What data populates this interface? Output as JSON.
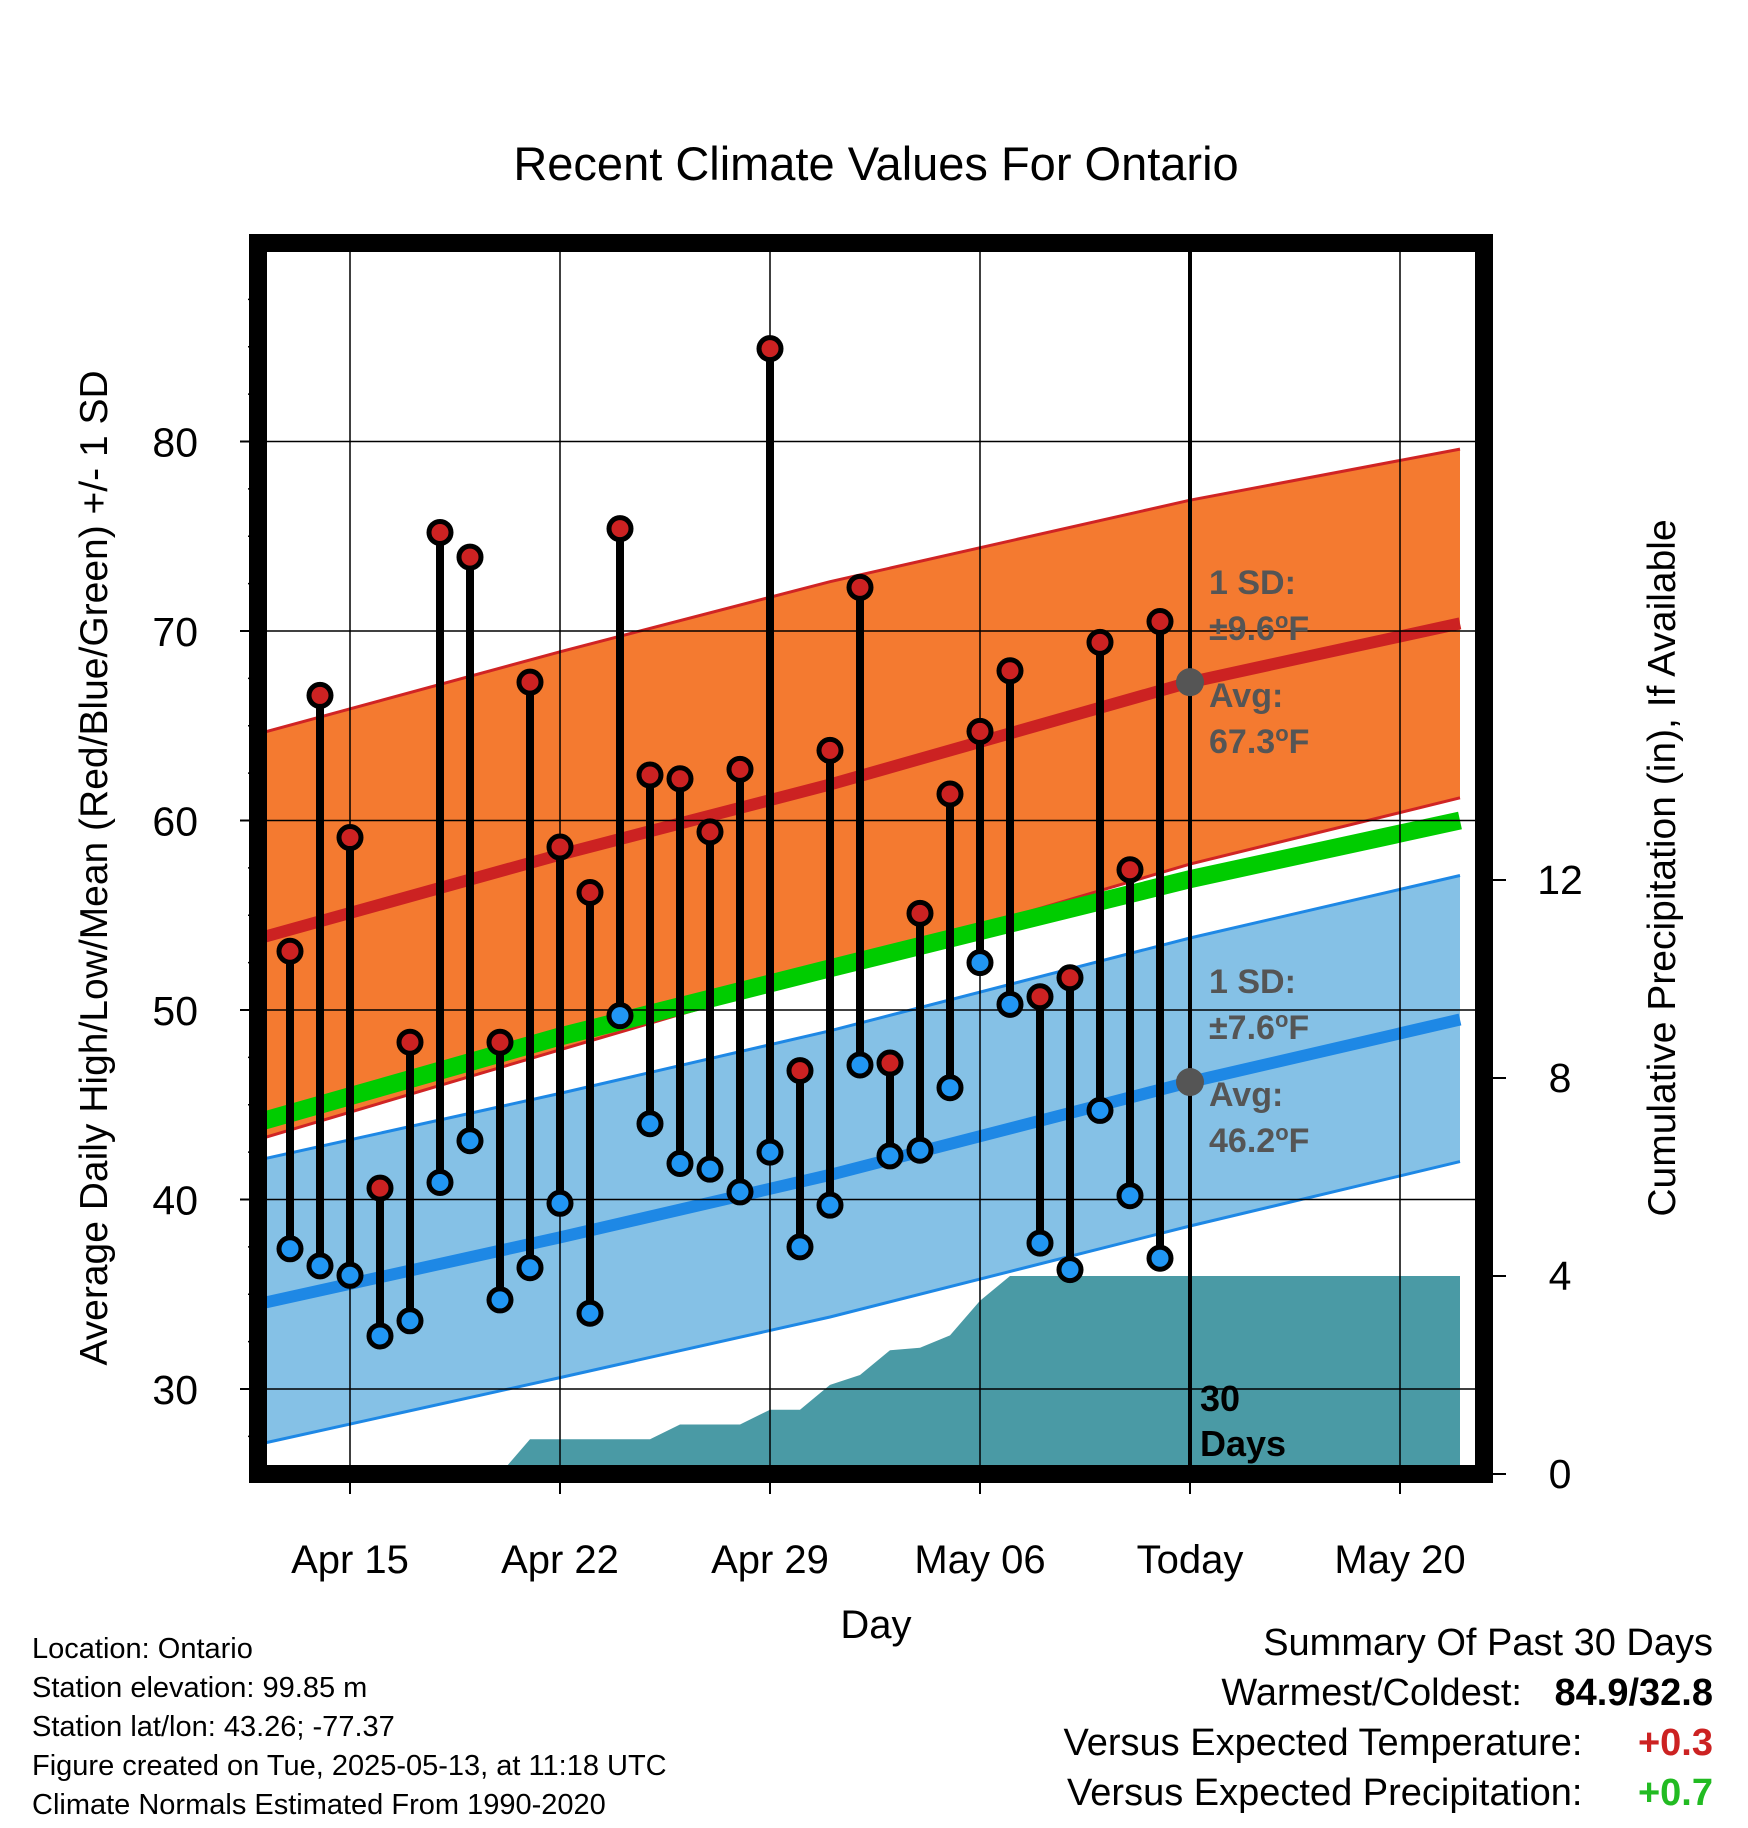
{
  "chart_data": {
    "type": "line",
    "title": "Recent Climate Values For Ontario",
    "xlabel": "Day",
    "ylabel": "Average Daily High/Low/Mean (Red/Blue/Green) +/- 1 SD",
    "y2label": "Cumulative Precipitation (in), If Available",
    "ylim": [
      25,
      90
    ],
    "y2lim": [
      0,
      22
    ],
    "yticks": [
      30,
      40,
      50,
      60,
      70,
      80
    ],
    "y2ticks": [
      0,
      4,
      8,
      12
    ],
    "xlim": [
      "2025-04-12",
      "2025-05-22"
    ],
    "xtick_dates": [
      "2025-04-15",
      "2025-04-22",
      "2025-04-29",
      "2025-05-06",
      "2025-05-13",
      "2025-05-20"
    ],
    "xtick_labels": [
      "Apr 15",
      "Apr 22",
      "Apr 29",
      "May 06",
      "Today",
      "May 20"
    ],
    "grid": true,
    "today": "2025-05-13",
    "days_label": "30\nDays",
    "colors": {
      "high_band": "#f47a30",
      "high_edge": "#d02424",
      "high_mean": "#cc2222",
      "low_band": "#85c1e6",
      "low_edge": "#1e88e5",
      "low_mean": "#1e88e5",
      "mean_normal": "#00cc00",
      "precip": "#4a9aa5",
      "high_marker": "#cc2222",
      "low_marker": "#2196f3",
      "annotation": "#555555",
      "plus_temp": "#cc2222",
      "plus_precip": "#22bb22"
    },
    "normal_high": {
      "dates": [
        "2025-04-12",
        "2025-04-22",
        "2025-05-01",
        "2025-05-13",
        "2025-05-22"
      ],
      "mean": [
        53.8,
        58.2,
        61.9,
        67.3,
        70.4
      ],
      "upper": [
        64.6,
        68.9,
        72.6,
        76.9,
        79.6
      ],
      "lower": [
        43.2,
        47.9,
        52.1,
        57.7,
        61.2
      ]
    },
    "normal_low": {
      "dates": [
        "2025-04-12",
        "2025-04-22",
        "2025-05-01",
        "2025-05-13",
        "2025-05-22"
      ],
      "mean": [
        34.5,
        38.0,
        41.3,
        46.2,
        49.5
      ],
      "upper": [
        42.1,
        45.6,
        48.9,
        53.8,
        57.1
      ],
      "lower": [
        27.1,
        30.6,
        33.8,
        38.6,
        42.0
      ]
    },
    "normal_mean": {
      "dates": [
        "2025-04-12",
        "2025-04-22",
        "2025-05-01",
        "2025-05-13",
        "2025-05-22"
      ],
      "values": [
        44.1,
        48.6,
        52.2,
        56.9,
        60.0
      ]
    },
    "observations": [
      {
        "date": "2025-04-13",
        "high": 53.1,
        "low": 37.4
      },
      {
        "date": "2025-04-14",
        "high": 66.6,
        "low": 36.5
      },
      {
        "date": "2025-04-15",
        "high": 59.1,
        "low": 36.0
      },
      {
        "date": "2025-04-16",
        "high": 40.6,
        "low": 32.8
      },
      {
        "date": "2025-04-17",
        "high": 48.3,
        "low": 33.6
      },
      {
        "date": "2025-04-18",
        "high": 75.2,
        "low": 40.9
      },
      {
        "date": "2025-04-19",
        "high": 73.9,
        "low": 43.1
      },
      {
        "date": "2025-04-20",
        "high": 48.3,
        "low": 34.7
      },
      {
        "date": "2025-04-21",
        "high": 67.3,
        "low": 36.4
      },
      {
        "date": "2025-04-22",
        "high": 58.6,
        "low": 39.8
      },
      {
        "date": "2025-04-23",
        "high": 56.2,
        "low": 34.0
      },
      {
        "date": "2025-04-24",
        "high": 75.4,
        "low": 49.7
      },
      {
        "date": "2025-04-25",
        "high": 62.4,
        "low": 44.0
      },
      {
        "date": "2025-04-26",
        "high": 62.2,
        "low": 41.9
      },
      {
        "date": "2025-04-27",
        "high": 59.4,
        "low": 41.6
      },
      {
        "date": "2025-04-28",
        "high": 62.7,
        "low": 40.4
      },
      {
        "date": "2025-04-29",
        "high": 84.9,
        "low": 42.5
      },
      {
        "date": "2025-04-30",
        "high": 46.8,
        "low": 37.5
      },
      {
        "date": "2025-05-01",
        "high": 63.7,
        "low": 39.7
      },
      {
        "date": "2025-05-02",
        "high": 72.3,
        "low": 47.1
      },
      {
        "date": "2025-05-03",
        "high": 47.2,
        "low": 42.3
      },
      {
        "date": "2025-05-04",
        "high": 55.1,
        "low": 42.6
      },
      {
        "date": "2025-05-05",
        "high": 61.4,
        "low": 45.9
      },
      {
        "date": "2025-05-06",
        "high": 64.7,
        "low": 52.5
      },
      {
        "date": "2025-05-07",
        "high": 67.9,
        "low": 50.3
      },
      {
        "date": "2025-05-08",
        "high": 50.7,
        "low": 37.7
      },
      {
        "date": "2025-05-09",
        "high": 51.7,
        "low": 36.3
      },
      {
        "date": "2025-05-10",
        "high": 69.4,
        "low": 44.7
      },
      {
        "date": "2025-05-11",
        "high": 57.4,
        "low": 40.2
      },
      {
        "date": "2025-05-12",
        "high": 70.5,
        "low": 36.9
      }
    ],
    "precipitation": {
      "dates": [
        "2025-04-12",
        "2025-04-20",
        "2025-04-21",
        "2025-04-25",
        "2025-04-26",
        "2025-04-28",
        "2025-04-29",
        "2025-04-30",
        "2025-05-01",
        "2025-05-02",
        "2025-05-03",
        "2025-05-04",
        "2025-05-05",
        "2025-05-06",
        "2025-05-07",
        "2025-05-22"
      ],
      "values": [
        0,
        0,
        0.7,
        0.7,
        1.0,
        1.0,
        1.3,
        1.3,
        1.8,
        2.0,
        2.5,
        2.55,
        2.8,
        3.5,
        4.0,
        4.0
      ]
    },
    "annotations": {
      "high_sd_label": "1 SD:",
      "high_sd_value": "±9.6",
      "high_avg_label": "Avg:",
      "high_avg_value": "67.3",
      "low_sd_label": "1 SD:",
      "low_sd_value": "±7.6",
      "low_avg_label": "Avg:",
      "low_avg_value": "46.2",
      "degree_unit": "o",
      "temp_unit": "F"
    }
  },
  "station": {
    "location": "Location: Ontario",
    "elevation": "Station elevation: 99.85 m",
    "latlon": "Station lat/lon: 43.26; -77.37",
    "created": "Figure created on Tue, 2025-05-13, at 11:18 UTC",
    "normals": "Climate Normals Estimated From 1990-2020"
  },
  "summary": {
    "title": "Summary Of Past 30 Days",
    "warmest_label": "Warmest/Coldest:",
    "warmest_value": "84.9/32.8",
    "temp_label": "Versus Expected Temperature:",
    "temp_value": "+0.3",
    "precip_label": "Versus Expected Precipitation:",
    "precip_value": "+0.7"
  }
}
